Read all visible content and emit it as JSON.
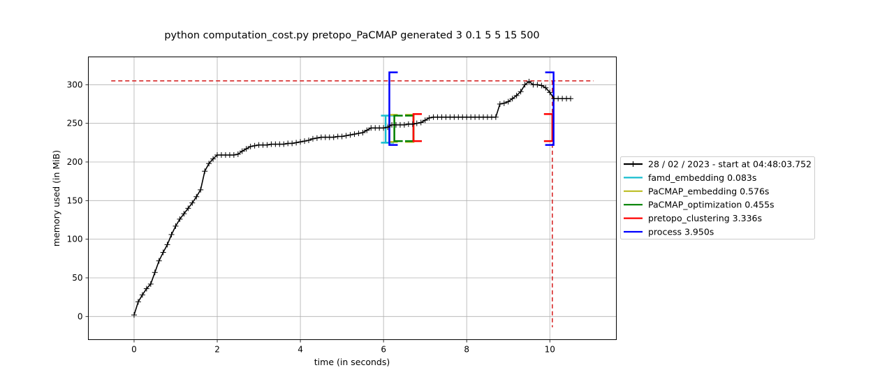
{
  "chart_data": {
    "type": "line",
    "title": "python computation_cost.py pretopo_PaCMAP generated 3 0.1 5 5 15 500",
    "xlabel": "time (in seconds)",
    "ylabel": "memory used (in MiB)",
    "xlim": [
      -1.1,
      11.6
    ],
    "ylim": [
      -30,
      336
    ],
    "x_ticks": [
      0,
      2,
      4,
      6,
      8,
      10
    ],
    "y_ticks": [
      0,
      50,
      100,
      150,
      200,
      250,
      300
    ],
    "grid": true,
    "legend_position": "outside right",
    "series": [
      {
        "name": "28 / 02 / 2023 - start at 04:48:03.752",
        "color": "#000000",
        "marker": "plus",
        "x": [
          0.0,
          0.1,
          0.2,
          0.3,
          0.4,
          0.5,
          0.6,
          0.7,
          0.8,
          0.9,
          1.0,
          1.1,
          1.2,
          1.3,
          1.4,
          1.5,
          1.6,
          1.7,
          1.8,
          1.9,
          2.0,
          2.1,
          2.2,
          2.3,
          2.4,
          2.5,
          2.6,
          2.7,
          2.8,
          2.9,
          3.0,
          3.1,
          3.2,
          3.3,
          3.4,
          3.5,
          3.6,
          3.7,
          3.8,
          3.9,
          4.0,
          4.1,
          4.2,
          4.3,
          4.4,
          4.5,
          4.6,
          4.7,
          4.8,
          4.9,
          5.0,
          5.1,
          5.2,
          5.3,
          5.4,
          5.5,
          5.6,
          5.7,
          5.8,
          5.9,
          6.0,
          6.1,
          6.2,
          6.3,
          6.4,
          6.5,
          6.6,
          6.7,
          6.8,
          6.9,
          7.0,
          7.1,
          7.2,
          7.3,
          7.4,
          7.5,
          7.6,
          7.7,
          7.8,
          7.9,
          8.0,
          8.1,
          8.2,
          8.3,
          8.4,
          8.5,
          8.6,
          8.7,
          8.8,
          8.9,
          9.0,
          9.1,
          9.2,
          9.3,
          9.4,
          9.5,
          9.6,
          9.7,
          9.8,
          9.9,
          10.0,
          10.1,
          10.2,
          10.3,
          10.4,
          10.5
        ],
        "y": [
          2,
          19,
          28,
          36,
          42,
          57,
          72,
          83,
          93,
          106,
          117,
          126,
          133,
          140,
          147,
          155,
          164,
          188,
          198,
          204,
          209,
          209,
          209,
          209,
          209,
          210,
          214,
          217,
          220,
          221,
          222,
          222,
          222,
          223,
          223,
          223,
          223,
          224,
          224,
          225,
          226,
          227,
          228,
          230,
          231,
          232,
          232,
          232,
          232,
          233,
          233,
          234,
          235,
          236,
          237,
          238,
          241,
          244,
          244,
          244,
          244,
          245,
          248,
          248,
          248,
          248,
          249,
          249,
          250,
          251,
          254,
          257,
          258,
          258,
          258,
          258,
          258,
          258,
          258,
          258,
          258,
          258,
          258,
          258,
          258,
          258,
          258,
          258,
          275,
          276,
          278,
          282,
          286,
          291,
          300,
          304,
          300,
          300,
          299,
          296,
          290,
          282,
          282,
          282,
          282,
          282
        ]
      }
    ],
    "functions": [
      {
        "name": "famd_embedding 0.083s",
        "color": "#17becf",
        "start": 6.05,
        "end": 6.14,
        "y_low": 225,
        "y_high": 260
      },
      {
        "name": "PaCMAP_embedding 0.576s",
        "color": "#bcbd22",
        "start": 6.14,
        "end": 6.72,
        "y_low": 226,
        "y_high": 261
      },
      {
        "name": "PaCMAP_optimization 0.455s",
        "color": "#008000",
        "start": 6.26,
        "end": 6.72,
        "y_low": 227,
        "y_high": 260
      },
      {
        "name": "pretopo_clustering 3.336s",
        "color": "#ff0000",
        "start": 6.72,
        "end": 10.06,
        "y_low": 227,
        "y_high": 262
      },
      {
        "name": "process 3.950s",
        "color": "#0000ff",
        "start": 6.14,
        "end": 10.09,
        "y_low": 222,
        "y_high": 316
      }
    ],
    "peak": {
      "color": "#d62728",
      "x": 10.06,
      "y": 305
    }
  }
}
